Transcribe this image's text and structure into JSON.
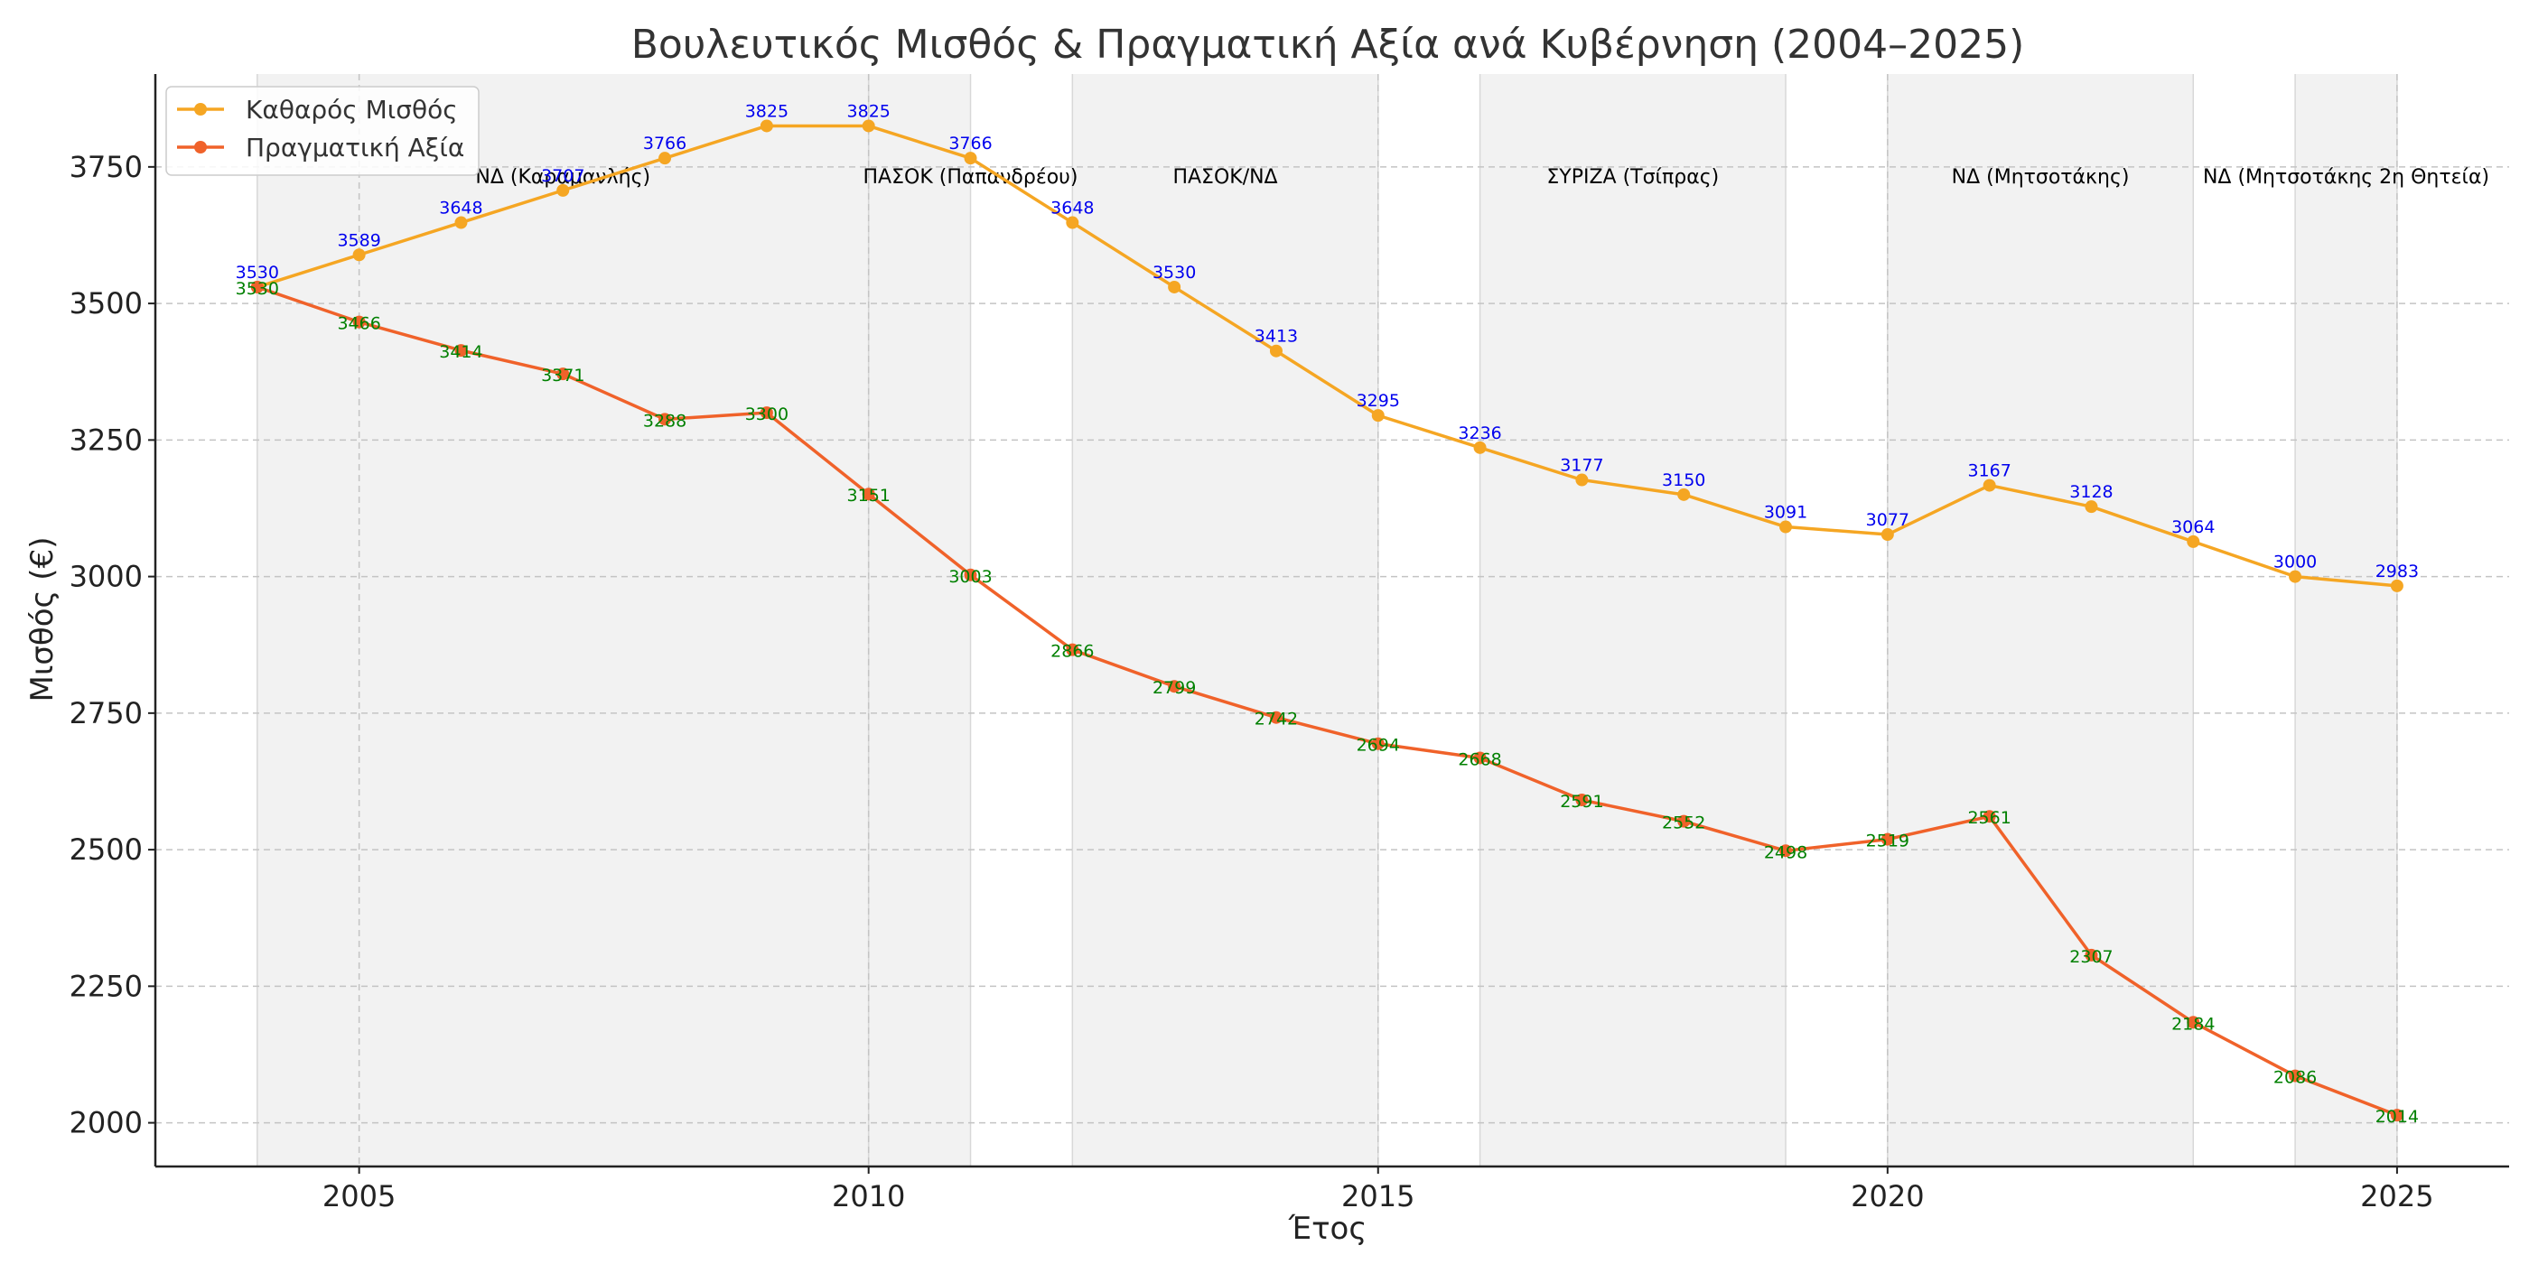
{
  "chart_data": {
    "type": "line",
    "title": "Βουλευτικός Μισθός & Πραγματική Αξία ανά Κυβέρνηση (2004–2025)",
    "xlabel": "Έτος",
    "ylabel": "Μισθός (€)",
    "xlim": [
      2003,
      2026.1
    ],
    "ylim": [
      1920,
      3920
    ],
    "x_ticks": [
      2005,
      2010,
      2015,
      2020,
      2025
    ],
    "y_ticks": [
      2000,
      2250,
      2500,
      2750,
      3000,
      3250,
      3500,
      3750
    ],
    "grid": true,
    "legend_position": "top-left",
    "x": [
      2004,
      2005,
      2006,
      2007,
      2008,
      2009,
      2010,
      2011,
      2012,
      2013,
      2014,
      2015,
      2016,
      2017,
      2018,
      2019,
      2020,
      2021,
      2022,
      2023,
      2024,
      2025
    ],
    "series": [
      {
        "name": "Καθαρός Μισθός",
        "color": "#f5a623",
        "label_color": "#0000ee",
        "values": [
          3530,
          3589,
          3648,
          3707,
          3766,
          3825,
          3825,
          3766,
          3648,
          3530,
          3413,
          3295,
          3236,
          3177,
          3150,
          3091,
          3077,
          3167,
          3128,
          3064,
          3000,
          2983
        ],
        "labels": [
          "3530",
          "3589",
          "3648",
          "3707",
          "3766",
          "3825",
          "3825",
          "3766",
          "3648",
          "3530",
          "3413",
          "3295",
          "3236",
          "3177",
          "3150",
          "3091",
          "3077",
          "3167",
          "3128",
          "3064",
          "3000",
          "2983"
        ]
      },
      {
        "name": "Πραγματική Αξία",
        "color": "#f0622a",
        "label_color": "#008000",
        "values": [
          3530,
          3466,
          3414,
          3371,
          3288,
          3300,
          3151,
          3003,
          2866,
          2799,
          2742,
          2694,
          2668,
          2591,
          2552,
          2498,
          2519,
          2561,
          2307,
          2184,
          2086,
          2014
        ],
        "labels": [
          "3530",
          "3466",
          "3414",
          "3371",
          "3288",
          "3300",
          "3151",
          "3003",
          "2866",
          "2799",
          "2742",
          "2694",
          "2668",
          "2591",
          "2552",
          "2498",
          "2519",
          "2561",
          "2307",
          "2184",
          "2086",
          "2014"
        ]
      }
    ],
    "government_periods": [
      {
        "start": 2004,
        "end": 2010,
        "label": "ΝΔ (Καραμανλής)",
        "label_x": 2007
      },
      {
        "start": 2010,
        "end": 2011,
        "label": "ΠΑΣΟΚ (Παπανδρέου)",
        "label_x": 2011
      },
      {
        "start": 2012,
        "end": 2015,
        "label": "ΠΑΣΟΚ/ΝΔ",
        "label_x": 2013.5
      },
      {
        "start": 2016,
        "end": 2019,
        "label": "ΣΥΡΙΖΑ (Τσίπρας)",
        "label_x": 2017.5
      },
      {
        "start": 2020,
        "end": 2023,
        "label": "ΝΔ (Μητσοτάκης)",
        "label_x": 2021.5
      },
      {
        "start": 2024,
        "end": 2025,
        "label": "ΝΔ (Μητσοτάκης 2η Θητεία)",
        "label_x": 2024.5
      }
    ]
  }
}
